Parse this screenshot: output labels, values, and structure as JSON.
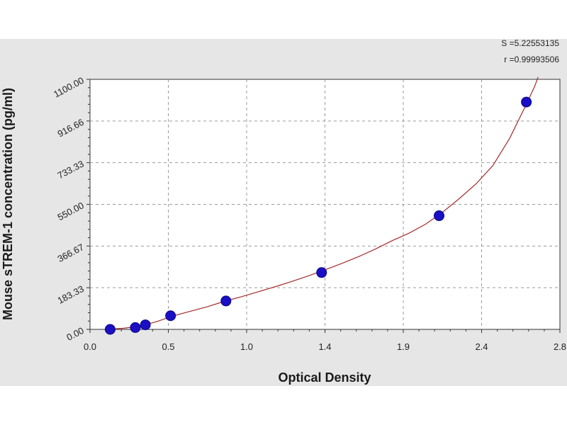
{
  "chart_data": {
    "type": "scatter",
    "title": "",
    "xlabel": "Optical Density",
    "ylabel": "Mouse sTREM-1 concentration (pg/ml)",
    "xlim": [
      0.0,
      2.8
    ],
    "ylim": [
      0.0,
      1100.0
    ],
    "x_ticks": [
      "0.0",
      "0.5",
      "1.0",
      "1.4",
      "1.9",
      "2.4",
      "2.8"
    ],
    "y_ticks": [
      "0.00",
      "183.33",
      "366.67",
      "550.00",
      "733.33",
      "916.66",
      "1100.00"
    ],
    "grid": true,
    "stats": [
      "S =5.22553135",
      "r =0.99993506"
    ],
    "colors": {
      "points": "#1a0fc4",
      "curve": "#a52a2a",
      "plot_bg": "#ffffff",
      "panel_bg": "#e6e6e6"
    },
    "series": [
      {
        "points": [
          {
            "x": 0.12,
            "y": 0
          },
          {
            "x": 0.27,
            "y": 8
          },
          {
            "x": 0.33,
            "y": 20
          },
          {
            "x": 0.48,
            "y": 60
          },
          {
            "x": 0.81,
            "y": 125
          },
          {
            "x": 1.38,
            "y": 250
          },
          {
            "x": 2.08,
            "y": 500
          },
          {
            "x": 2.6,
            "y": 1000
          }
        ]
      }
    ],
    "fit_curve": [
      [
        0.1,
        0
      ],
      [
        0.2,
        5
      ],
      [
        0.3,
        14
      ],
      [
        0.4,
        35
      ],
      [
        0.5,
        60
      ],
      [
        0.6,
        80
      ],
      [
        0.7,
        100
      ],
      [
        0.8,
        123
      ],
      [
        0.9,
        143
      ],
      [
        1.0,
        165
      ],
      [
        1.1,
        187
      ],
      [
        1.2,
        210
      ],
      [
        1.3,
        235
      ],
      [
        1.4,
        262
      ],
      [
        1.5,
        290
      ],
      [
        1.6,
        320
      ],
      [
        1.7,
        353
      ],
      [
        1.8,
        390
      ],
      [
        1.9,
        423
      ],
      [
        2.0,
        463
      ],
      [
        2.1,
        515
      ],
      [
        2.2,
        575
      ],
      [
        2.3,
        640
      ],
      [
        2.4,
        720
      ],
      [
        2.5,
        840
      ],
      [
        2.6,
        990
      ],
      [
        2.65,
        1070
      ],
      [
        2.67,
        1110
      ]
    ]
  }
}
